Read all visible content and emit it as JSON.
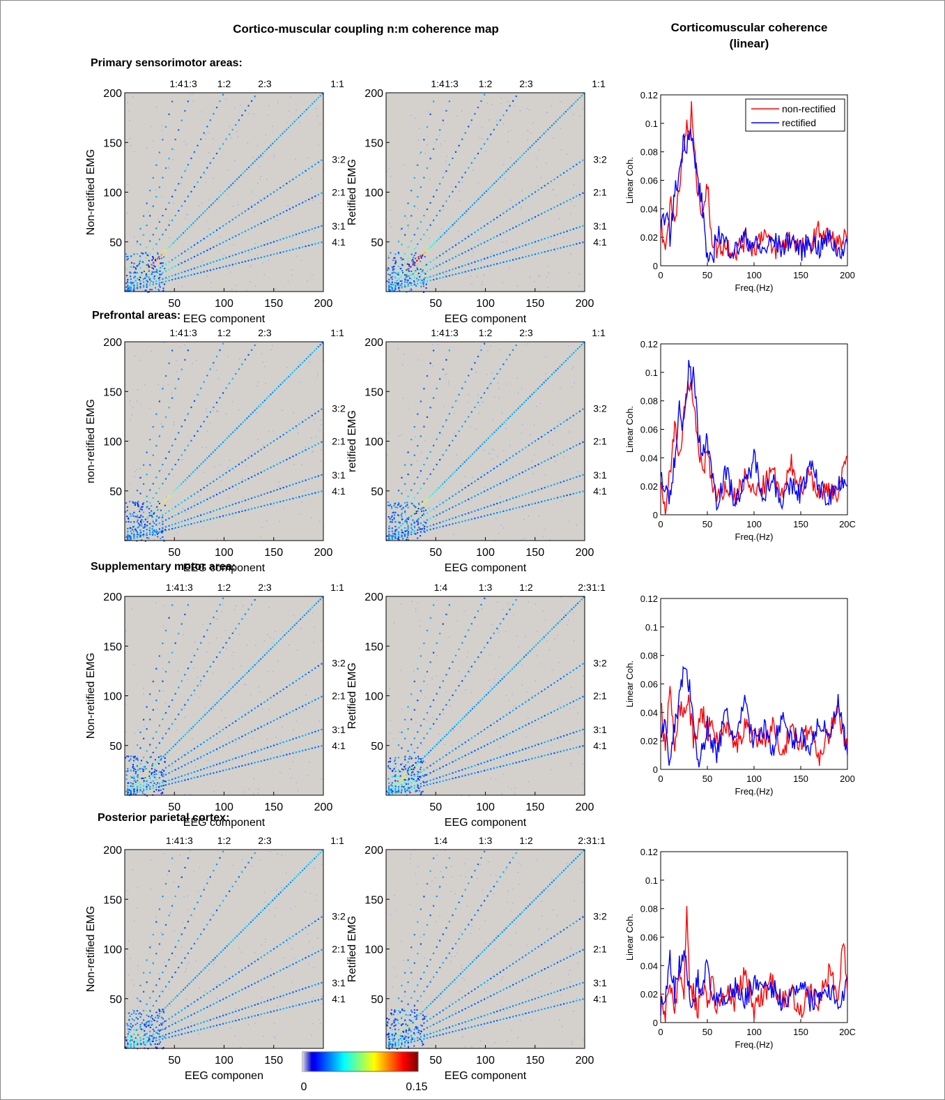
{
  "headers": {
    "main": "Cortico-muscular coupling n:m coherence map",
    "right_line1": "Corticomuscular coherence",
    "right_line2": "(linear)"
  },
  "sections": [
    "Primary sensorimotor areas:",
    "Prefrontal areas:",
    "Supplementary motor area:",
    "Posterior parietal cortex:"
  ],
  "colorbar": {
    "min_label": "0",
    "max_label": "0.15",
    "colormap": "jet"
  },
  "colors": {
    "map_bg": "#d4d1cd",
    "non_rectified": "#ff0000",
    "rectified": "#0000ff"
  },
  "chart_data": [
    {
      "type": "heatmap",
      "section": "Primary sensorimotor areas:",
      "title": "",
      "xlabel": "EEG component",
      "ylabel": "Non-retified EMG",
      "xlim": [
        0,
        200
      ],
      "ylim": [
        0,
        200
      ],
      "xticks": [
        50,
        100,
        150,
        200
      ],
      "yticks": [
        50,
        100,
        150,
        200
      ],
      "ratio_top": [
        "1:4",
        "1:3",
        "1:2",
        "2:3",
        "1:1"
      ],
      "ratio_right": [
        "3:2",
        "2:1",
        "3:1",
        "4:1"
      ],
      "peak_coherence": 0.12,
      "peak_at": [
        30,
        30
      ]
    },
    {
      "type": "heatmap",
      "section": "Primary sensorimotor areas:",
      "title": "",
      "xlabel": "EEG component",
      "ylabel": "Retified EMG",
      "xlim": [
        0,
        200
      ],
      "ylim": [
        0,
        200
      ],
      "xticks": [
        50,
        100,
        150,
        200
      ],
      "yticks": [
        50,
        100,
        150,
        200
      ],
      "ratio_top": [
        "1:4",
        "1:3",
        "1:2",
        "2:3",
        "1:1"
      ],
      "ratio_right": [
        "3:2",
        "2:1",
        "3:1",
        "4:1"
      ],
      "peak_coherence": 0.13,
      "peak_at": [
        30,
        30
      ]
    },
    {
      "type": "line",
      "section": "Primary sensorimotor areas:",
      "title": "",
      "xlabel": "Freq.(Hz)",
      "ylabel": "Linear Coh.",
      "xlim": [
        0,
        200
      ],
      "ylim": [
        0,
        0.12
      ],
      "xticks": [
        "0",
        "50",
        "100",
        "150",
        "200"
      ],
      "yticks": [
        "0",
        "0.02",
        "0.04",
        "0.06",
        "0.08",
        "0.1",
        "0.12"
      ],
      "legend": "top-right",
      "legend_entries": [
        "non-rectified",
        "rectified"
      ],
      "series": [
        {
          "name": "non-rectified",
          "x": [
            0,
            5,
            10,
            15,
            20,
            25,
            28,
            31,
            33,
            36,
            40,
            45,
            50,
            55,
            60,
            70,
            80,
            90,
            100,
            110,
            120,
            130,
            140,
            150,
            160,
            170,
            180,
            190,
            200
          ],
          "y": [
            0.03,
            0.01,
            0.045,
            0.03,
            0.06,
            0.08,
            0.1,
            0.09,
            0.11,
            0.08,
            0.05,
            0.04,
            0.055,
            0.02,
            0.012,
            0.015,
            0.01,
            0.018,
            0.012,
            0.025,
            0.01,
            0.015,
            0.02,
            0.012,
            0.015,
            0.025,
            0.02,
            0.015,
            0.02
          ]
        },
        {
          "name": "rectified",
          "x": [
            0,
            5,
            10,
            15,
            20,
            25,
            28,
            31,
            33,
            36,
            40,
            45,
            50,
            55,
            60,
            70,
            80,
            90,
            100,
            110,
            120,
            130,
            140,
            150,
            160,
            170,
            180,
            190,
            200
          ],
          "y": [
            0.02,
            0.04,
            0.02,
            0.05,
            0.065,
            0.09,
            0.085,
            0.1,
            0.09,
            0.075,
            0.06,
            0.04,
            0.005,
            0.0,
            0.025,
            0.015,
            0.01,
            0.02,
            0.015,
            0.01,
            0.018,
            0.012,
            0.02,
            0.01,
            0.018,
            0.012,
            0.02,
            0.01,
            0.015
          ]
        }
      ]
    },
    {
      "type": "heatmap",
      "section": "Prefrontal areas:",
      "title": "",
      "xlabel": "EEG component",
      "ylabel": "non-retified EMG",
      "xlim": [
        0,
        200
      ],
      "ylim": [
        0,
        200
      ],
      "xticks": [
        50,
        100,
        150,
        200
      ],
      "yticks": [
        50,
        100,
        150,
        200
      ],
      "ratio_top": [
        "1:4",
        "1:3",
        "1:2",
        "2:3",
        "1:1"
      ],
      "ratio_right": [
        "3:2",
        "2:1",
        "3:1",
        "4:1"
      ],
      "peak_coherence": 0.07,
      "peak_at": [
        40,
        40
      ]
    },
    {
      "type": "heatmap",
      "section": "Prefrontal areas:",
      "title": "",
      "xlabel": "EEG component",
      "ylabel": "retified EMG",
      "xlim": [
        0,
        200
      ],
      "ylim": [
        0,
        200
      ],
      "xticks": [
        50,
        100,
        150,
        200
      ],
      "yticks": [
        50,
        100,
        150,
        200
      ],
      "ratio_top": [
        "1:4",
        "1:3",
        "1:2",
        "2:3",
        "1:1"
      ],
      "ratio_right": [
        "3:2",
        "2:1",
        "3:1",
        "4:1"
      ],
      "peak_coherence": 0.07,
      "peak_at": [
        35,
        35
      ]
    },
    {
      "type": "line",
      "section": "Prefrontal areas:",
      "title": "",
      "xlabel": "Freq.(Hz)",
      "ylabel": "Linear Coh.",
      "xlim": [
        0,
        200
      ],
      "ylim": [
        0,
        0.12
      ],
      "xticks": [
        "0",
        "50",
        "100",
        "150",
        "20C"
      ],
      "yticks": [
        "0",
        "0.02",
        "0.04",
        "0.06",
        "0.08",
        "0.1",
        "0.12"
      ],
      "series": [
        {
          "name": "non-rectified",
          "x": [
            0,
            5,
            10,
            15,
            20,
            25,
            28,
            31,
            33,
            36,
            40,
            45,
            50,
            55,
            60,
            70,
            80,
            90,
            100,
            110,
            120,
            130,
            140,
            150,
            160,
            170,
            180,
            190,
            200
          ],
          "y": [
            0.02,
            0.005,
            0.03,
            0.06,
            0.04,
            0.07,
            0.09,
            0.08,
            0.095,
            0.07,
            0.05,
            0.03,
            0.045,
            0.02,
            0.01,
            0.02,
            0.012,
            0.025,
            0.015,
            0.02,
            0.03,
            0.012,
            0.035,
            0.02,
            0.03,
            0.012,
            0.02,
            0.015,
            0.04
          ]
        },
        {
          "name": "rectified",
          "x": [
            0,
            5,
            10,
            15,
            20,
            25,
            28,
            31,
            33,
            36,
            40,
            45,
            50,
            55,
            60,
            70,
            80,
            90,
            100,
            110,
            120,
            130,
            140,
            150,
            160,
            170,
            180,
            190,
            200
          ],
          "y": [
            0.03,
            0.02,
            0.01,
            0.04,
            0.075,
            0.06,
            0.085,
            0.11,
            0.09,
            0.1,
            0.06,
            0.04,
            0.055,
            0.03,
            0.01,
            0.03,
            0.01,
            0.02,
            0.04,
            0.015,
            0.025,
            0.01,
            0.02,
            0.015,
            0.035,
            0.02,
            0.01,
            0.025,
            0.02
          ]
        }
      ]
    },
    {
      "type": "heatmap",
      "section": "Supplementary motor area:",
      "title": "",
      "xlabel": "EEG component",
      "ylabel": "Non-retified EMG",
      "xlim": [
        0,
        200
      ],
      "ylim": [
        0,
        200
      ],
      "xticks": [
        50,
        100,
        150,
        200
      ],
      "yticks": [
        50,
        100,
        150,
        200
      ],
      "ratio_top": [
        "1:41:3",
        "1:2",
        "2:3",
        "1:1"
      ],
      "ratio_right": [
        "3:2",
        "2:1",
        "3:1",
        "4:1"
      ],
      "peak_coherence": 0.06,
      "peak_at": [
        20,
        20
      ]
    },
    {
      "type": "heatmap",
      "section": "Supplementary motor area:",
      "title": "",
      "xlabel": "EEG component",
      "ylabel": "Retified EMG",
      "xlim": [
        0,
        200
      ],
      "ylim": [
        0,
        200
      ],
      "xticks": [
        50,
        100,
        150,
        200
      ],
      "yticks": [
        50,
        100,
        150,
        200
      ],
      "ratio_top": [
        "1:4",
        "1:3",
        "1:2",
        "2:3",
        "1:1"
      ],
      "ratio_right": [
        "3:2",
        "2:1",
        "3:1",
        "4:1"
      ],
      "peak_coherence": 0.06,
      "peak_at": [
        20,
        20
      ]
    },
    {
      "type": "line",
      "section": "Supplementary motor area:",
      "title": "",
      "xlabel": "Freq.(Hz)",
      "ylabel": "Linear Coh.",
      "xlim": [
        0,
        200
      ],
      "ylim": [
        0,
        0.12
      ],
      "xticks": [
        "0",
        "50",
        "100",
        "150",
        "200"
      ],
      "yticks": [
        "0",
        "0.02",
        "0.04",
        "0.06",
        "0.08",
        "0.1",
        "0.12"
      ],
      "series": [
        {
          "name": "non-rectified",
          "x": [
            0,
            5,
            10,
            15,
            20,
            25,
            30,
            35,
            40,
            45,
            50,
            55,
            60,
            70,
            80,
            90,
            100,
            110,
            120,
            130,
            140,
            150,
            160,
            170,
            180,
            190,
            200
          ],
          "y": [
            0.05,
            0.01,
            0.06,
            0.02,
            0.045,
            0.04,
            0.05,
            0.02,
            0.03,
            0.04,
            0.025,
            0.035,
            0.02,
            0.03,
            0.015,
            0.03,
            0.025,
            0.02,
            0.03,
            0.015,
            0.025,
            0.02,
            0.03,
            0.01,
            0.025,
            0.04,
            0.015
          ]
        },
        {
          "name": "rectified",
          "x": [
            0,
            5,
            10,
            15,
            20,
            25,
            30,
            35,
            40,
            45,
            50,
            55,
            60,
            70,
            80,
            90,
            100,
            110,
            120,
            130,
            140,
            150,
            160,
            170,
            180,
            190,
            200
          ],
          "y": [
            0.02,
            0.04,
            0.0,
            0.03,
            0.05,
            0.074,
            0.06,
            0.04,
            0.0,
            0.015,
            0.03,
            0.02,
            0.01,
            0.04,
            0.02,
            0.045,
            0.02,
            0.03,
            0.015,
            0.035,
            0.02,
            0.025,
            0.015,
            0.035,
            0.02,
            0.046,
            0.01
          ]
        }
      ]
    },
    {
      "type": "heatmap",
      "section": "Posterior parietal cortex:",
      "title": "",
      "xlabel": "EEG componen",
      "ylabel": "Non-retified EMG",
      "xlim": [
        0,
        200
      ],
      "ylim": [
        0,
        200
      ],
      "xticks": [
        50,
        100,
        150,
        200
      ],
      "yticks": [
        50,
        100,
        150,
        200
      ],
      "ratio_top": [
        "1:41:3",
        "1:2",
        "2:3",
        "1:1"
      ],
      "ratio_right": [
        "3:2",
        "2:1",
        "3:1",
        "4:1"
      ],
      "peak_coherence": 0.05,
      "peak_at": [
        10,
        10
      ]
    },
    {
      "type": "heatmap",
      "section": "Posterior parietal cortex:",
      "title": "",
      "xlabel": "EEG component",
      "ylabel": "Retified EMG",
      "xlim": [
        0,
        200
      ],
      "ylim": [
        0,
        200
      ],
      "xticks": [
        50,
        100,
        150,
        200
      ],
      "yticks": [
        50,
        100,
        150,
        200
      ],
      "ratio_top": [
        "1:4",
        "1:3",
        "1:2",
        "2:3",
        "1:1"
      ],
      "ratio_right": [
        "3:2",
        "2:1",
        "3:1",
        "4:1"
      ],
      "peak_coherence": 0.05,
      "peak_at": [
        20,
        20
      ]
    },
    {
      "type": "line",
      "section": "Posterior parietal cortex:",
      "title": "",
      "xlabel": "Freq.(Hz)",
      "ylabel": "Linear Coh.",
      "xlim": [
        0,
        200
      ],
      "ylim": [
        0,
        0.12
      ],
      "xticks": [
        "0",
        "50",
        "100",
        "150",
        "20C"
      ],
      "yticks": [
        "0",
        "0.02",
        "0.04",
        "0.06",
        "0.08",
        "0.1",
        "0.12"
      ],
      "series": [
        {
          "name": "non-rectified",
          "x": [
            0,
            5,
            10,
            15,
            20,
            25,
            28,
            31,
            35,
            40,
            45,
            50,
            55,
            60,
            70,
            80,
            90,
            100,
            110,
            120,
            130,
            140,
            150,
            160,
            170,
            180,
            190,
            196,
            200
          ],
          "y": [
            0.02,
            0.005,
            0.03,
            0.01,
            0.035,
            0.02,
            0.08,
            0.03,
            0.02,
            0.01,
            0.025,
            0.015,
            0.03,
            0.01,
            0.02,
            0.015,
            0.035,
            0.01,
            0.02,
            0.03,
            0.015,
            0.02,
            0.01,
            0.02,
            0.015,
            0.035,
            0.02,
            0.058,
            0.02
          ]
        },
        {
          "name": "rectified",
          "x": [
            0,
            5,
            10,
            15,
            20,
            25,
            28,
            31,
            35,
            40,
            45,
            50,
            55,
            60,
            70,
            80,
            90,
            100,
            110,
            120,
            130,
            140,
            150,
            160,
            170,
            180,
            190,
            196,
            200
          ],
          "y": [
            0.01,
            0.02,
            0.045,
            0.02,
            0.04,
            0.047,
            0.035,
            0.02,
            0.015,
            0.03,
            0.02,
            0.045,
            0.02,
            0.015,
            0.02,
            0.025,
            0.015,
            0.03,
            0.02,
            0.025,
            0.015,
            0.02,
            0.03,
            0.015,
            0.02,
            0.025,
            0.015,
            0.02,
            0.03
          ]
        }
      ]
    }
  ]
}
